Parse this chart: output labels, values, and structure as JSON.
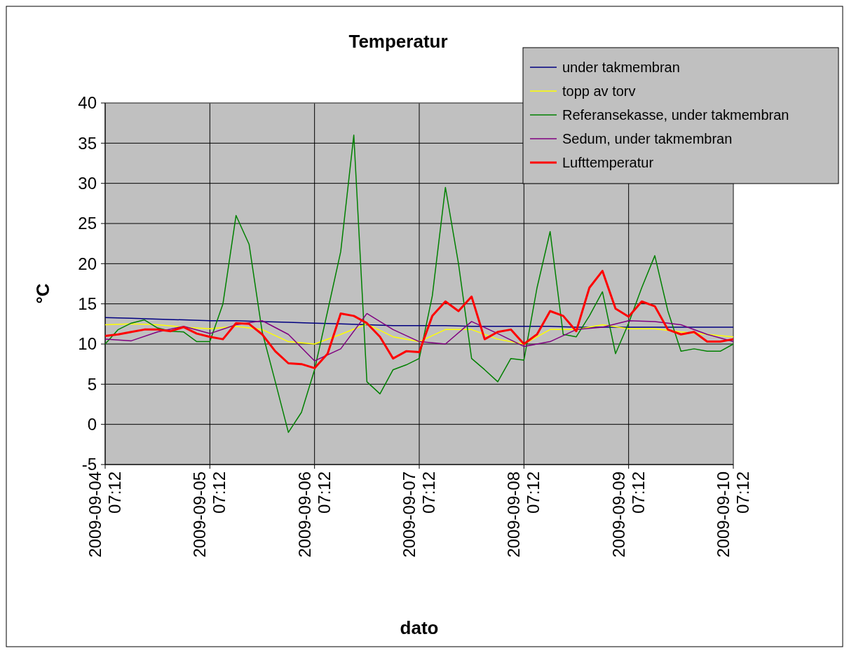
{
  "chart_data": {
    "type": "line",
    "title": "Temperatur",
    "xlabel": "dato",
    "ylabel": "°C",
    "x": [
      "2009-09-04T07:12",
      "2009-09-04T10:12",
      "2009-09-04T13:12",
      "2009-09-04T16:12",
      "2009-09-04T19:12",
      "2009-09-04T22:12",
      "2009-09-05T01:12",
      "2009-09-05T04:12",
      "2009-09-05T07:12",
      "2009-09-05T10:12",
      "2009-09-05T13:12",
      "2009-09-05T16:12",
      "2009-09-05T19:12",
      "2009-09-05T22:12",
      "2009-09-06T01:12",
      "2009-09-06T04:12",
      "2009-09-06T07:12",
      "2009-09-06T10:12",
      "2009-09-06T13:12",
      "2009-09-06T16:12",
      "2009-09-06T19:12",
      "2009-09-06T22:12",
      "2009-09-07T01:12",
      "2009-09-07T04:12",
      "2009-09-07T07:12",
      "2009-09-07T10:12",
      "2009-09-07T13:12",
      "2009-09-07T16:12",
      "2009-09-07T19:12",
      "2009-09-07T22:12",
      "2009-09-08T01:12",
      "2009-09-08T04:12",
      "2009-09-08T07:12",
      "2009-09-08T10:12",
      "2009-09-08T13:12",
      "2009-09-08T16:12",
      "2009-09-08T19:12",
      "2009-09-08T22:12",
      "2009-09-09T01:12",
      "2009-09-09T04:12",
      "2009-09-09T07:12",
      "2009-09-09T10:12",
      "2009-09-09T13:12",
      "2009-09-09T16:12",
      "2009-09-09T19:12",
      "2009-09-09T22:12",
      "2009-09-10T01:12",
      "2009-09-10T04:12",
      "2009-09-10T07:12"
    ],
    "series": [
      {
        "name": "under takmembran",
        "color": "#000080",
        "x": [
          "2009-09-04T07:12",
          "2009-09-04T13:12",
          "2009-09-04T19:12",
          "2009-09-05T01:12",
          "2009-09-05T07:12",
          "2009-09-05T13:12",
          "2009-09-05T19:12",
          "2009-09-06T01:12",
          "2009-09-06T07:12",
          "2009-09-06T13:12",
          "2009-09-06T19:12",
          "2009-09-07T01:12",
          "2009-09-07T07:12",
          "2009-09-07T13:12",
          "2009-09-07T19:12",
          "2009-09-08T01:12",
          "2009-09-08T07:12",
          "2009-09-08T13:12",
          "2009-09-08T19:12",
          "2009-09-09T01:12",
          "2009-09-09T07:12",
          "2009-09-09T13:12",
          "2009-09-09T19:12",
          "2009-09-10T01:12",
          "2009-09-10T07:12"
        ],
        "values": [
          13.3,
          13.2,
          13.1,
          13.0,
          12.9,
          12.9,
          12.8,
          12.7,
          12.6,
          12.5,
          12.4,
          12.3,
          12.3,
          12.3,
          12.2,
          12.2,
          12.2,
          12.2,
          12.1,
          12.1,
          12.1,
          12.1,
          12.1,
          12.1,
          12.1
        ]
      },
      {
        "name": "topp av torv",
        "color": "#ffff00",
        "x": [
          "2009-09-04T07:12",
          "2009-09-04T13:12",
          "2009-09-04T19:12",
          "2009-09-05T01:12",
          "2009-09-05T07:12",
          "2009-09-05T13:12",
          "2009-09-05T19:12",
          "2009-09-06T01:12",
          "2009-09-06T07:12",
          "2009-09-06T13:12",
          "2009-09-06T19:12",
          "2009-09-07T01:12",
          "2009-09-07T07:12",
          "2009-09-07T13:12",
          "2009-09-07T19:12",
          "2009-09-08T01:12",
          "2009-09-08T07:12",
          "2009-09-08T13:12",
          "2009-09-08T19:12",
          "2009-09-09T01:12",
          "2009-09-09T07:12",
          "2009-09-09T13:12",
          "2009-09-09T19:12",
          "2009-09-10T01:12",
          "2009-09-10T07:12"
        ],
        "values": [
          12.4,
          12.5,
          12.4,
          12.1,
          11.9,
          12.2,
          11.8,
          10.3,
          10.0,
          11.2,
          12.5,
          10.9,
          10.3,
          11.8,
          11.8,
          10.6,
          10.0,
          11.8,
          11.8,
          12.4,
          11.9,
          11.9,
          11.5,
          11.2,
          10.9
        ]
      },
      {
        "name": "Referansekasse, under takmembran",
        "color": "#008000",
        "values": [
          10.0,
          11.8,
          12.6,
          13.0,
          12.0,
          11.6,
          11.5,
          10.3,
          10.3,
          15.0,
          26.0,
          22.4,
          11.5,
          5.3,
          -1.0,
          1.5,
          6.8,
          14.1,
          21.5,
          36.0,
          5.3,
          3.8,
          6.8,
          7.4,
          8.2,
          16.0,
          29.5,
          20.0,
          8.2,
          6.8,
          5.3,
          8.2,
          8.0,
          17.0,
          24.0,
          11.2,
          10.9,
          13.5,
          16.5,
          8.8,
          12.6,
          17.0,
          21.0,
          14.1,
          9.1,
          9.4,
          9.1,
          9.1,
          10.0
        ]
      },
      {
        "name": "Sedum, under takmembran",
        "color": "#800080",
        "x": [
          "2009-09-04T07:12",
          "2009-09-04T13:12",
          "2009-09-04T19:12",
          "2009-09-05T01:12",
          "2009-09-05T07:12",
          "2009-09-05T13:12",
          "2009-09-05T19:12",
          "2009-09-06T01:12",
          "2009-09-06T07:12",
          "2009-09-06T13:12",
          "2009-09-06T19:12",
          "2009-09-07T01:12",
          "2009-09-07T07:12",
          "2009-09-07T13:12",
          "2009-09-07T19:12",
          "2009-09-08T01:12",
          "2009-09-08T07:12",
          "2009-09-08T13:12",
          "2009-09-08T19:12",
          "2009-09-09T01:12",
          "2009-09-09T07:12",
          "2009-09-09T13:12",
          "2009-09-09T19:12",
          "2009-09-10T01:12",
          "2009-09-10T07:12"
        ],
        "values": [
          10.6,
          10.4,
          11.5,
          12.2,
          11.3,
          12.4,
          12.9,
          11.2,
          7.9,
          9.4,
          13.8,
          11.8,
          10.3,
          10.0,
          12.8,
          11.3,
          9.7,
          10.3,
          11.8,
          12.1,
          12.9,
          12.8,
          12.4,
          11.2,
          10.3
        ]
      },
      {
        "name": "Lufttemperatur",
        "color": "#ff0000",
        "values": [
          11.0,
          11.2,
          11.5,
          11.8,
          11.8,
          11.6,
          12.1,
          11.3,
          10.9,
          10.6,
          12.6,
          12.5,
          11.2,
          9.1,
          7.6,
          7.5,
          7.0,
          8.8,
          13.8,
          13.5,
          12.6,
          10.9,
          8.2,
          9.1,
          9.0,
          13.5,
          15.3,
          14.1,
          15.9,
          10.6,
          11.5,
          11.8,
          10.0,
          11.2,
          14.1,
          13.5,
          11.6,
          17.0,
          19.1,
          14.4,
          13.4,
          15.3,
          14.7,
          11.8,
          11.2,
          11.5,
          10.3,
          10.3,
          10.6
        ]
      }
    ],
    "xlim": [
      "2009-09-04T07:12",
      "2009-09-10T07:12"
    ],
    "xticks": [
      {
        "value": "2009-09-04T07:12",
        "label": "2009-09-04 07:12"
      },
      {
        "value": "2009-09-05T07:12",
        "label": "2009-09-05 07:12"
      },
      {
        "value": "2009-09-06T07:12",
        "label": "2009-09-06 07:12"
      },
      {
        "value": "2009-09-07T07:12",
        "label": "2009-09-07 07:12"
      },
      {
        "value": "2009-09-08T07:12",
        "label": "2009-09-08 07:12"
      },
      {
        "value": "2009-09-09T07:12",
        "label": "2009-09-09 07:12"
      },
      {
        "value": "2009-09-10T07:12",
        "label": "2009-09-10 07:12"
      }
    ],
    "ylim": [
      -5,
      40
    ],
    "yticks": [
      -5,
      0,
      5,
      10,
      15,
      20,
      25,
      30,
      35,
      40
    ],
    "grid": true,
    "legend": "top right",
    "marker": "none",
    "line_style": "solid"
  }
}
